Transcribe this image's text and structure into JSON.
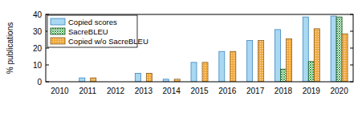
{
  "chart_data": {
    "type": "bar",
    "y_label": "% publications",
    "categories": [
      "2010",
      "2011",
      "2012",
      "2013",
      "2014",
      "2015",
      "2016",
      "2017",
      "2018",
      "2019",
      "2020"
    ],
    "series": [
      {
        "name": "Copied scores",
        "color": "#a9d8f2",
        "values": [
          0,
          2.3,
          0,
          5,
          1.5,
          11.5,
          18,
          24.5,
          31,
          38.5,
          39
        ]
      },
      {
        "name": "SacreBLEU",
        "color": "#2a9a3a",
        "values": [
          0,
          0,
          0,
          0,
          0,
          0,
          0,
          0,
          7.5,
          12,
          38.5
        ]
      },
      {
        "name": "Copied w/o SacreBLEU",
        "color": "#f2a93b",
        "values": [
          0,
          2.3,
          0,
          5,
          1.5,
          11.5,
          18,
          24.5,
          25.5,
          31.5,
          28.5
        ]
      }
    ],
    "ylim": [
      0,
      40
    ],
    "yticks": [
      0,
      10,
      20,
      30,
      40
    ],
    "legend": "upper left",
    "grid": false
  }
}
